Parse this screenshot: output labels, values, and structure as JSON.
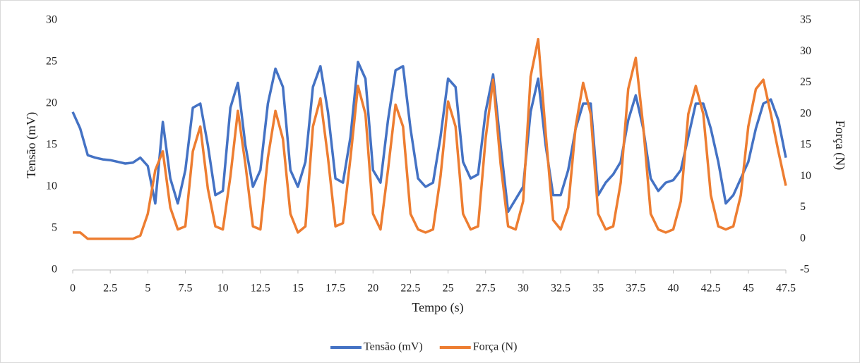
{
  "chart_data": {
    "type": "line",
    "xlabel": "Tempo (s)",
    "ylabel": "Tensão (mV)",
    "y2label": "Força (N)",
    "x": [
      0,
      0.5,
      1,
      1.5,
      2,
      2.5,
      3,
      3.5,
      4,
      4.5,
      5,
      5.5,
      6,
      6.5,
      7,
      7.5,
      8,
      8.5,
      9,
      9.5,
      10,
      10.5,
      11,
      11.5,
      12,
      12.5,
      13,
      13.5,
      14,
      14.5,
      15,
      15.5,
      16,
      16.5,
      17,
      17.5,
      18,
      18.5,
      19,
      19.5,
      20,
      20.5,
      21,
      21.5,
      22,
      22.5,
      23,
      23.5,
      24,
      24.5,
      25,
      25.5,
      26,
      26.5,
      27,
      27.5,
      28,
      28.5,
      29,
      29.5,
      30,
      30.5,
      31,
      31.5,
      32,
      32.5,
      33,
      33.5,
      34,
      34.5,
      35,
      35.5,
      36,
      36.5,
      37,
      37.5,
      38,
      38.5,
      39,
      39.5,
      40,
      40.5,
      41,
      41.5,
      42,
      42.5,
      43,
      43.5,
      44,
      44.5,
      45,
      45.5,
      46,
      46.5,
      47,
      47.5
    ],
    "series": [
      {
        "name": "Tensão (mV)",
        "color": "#4472c4",
        "axis": "y",
        "values": [
          19,
          17,
          13.8,
          13.5,
          13.3,
          13.2,
          13,
          12.8,
          12.9,
          13.5,
          12.5,
          8,
          17.8,
          11,
          8,
          12,
          19.5,
          20,
          15,
          9,
          9.5,
          19.5,
          22.5,
          15,
          10,
          12,
          20,
          24.2,
          22,
          12,
          10,
          13,
          22,
          24.5,
          19,
          11,
          10.5,
          16,
          25,
          23,
          12,
          10.5,
          18,
          24,
          24.5,
          17,
          11,
          10,
          10.5,
          16,
          23,
          22,
          13,
          11,
          11.5,
          19,
          23.5,
          15,
          7,
          8.5,
          10,
          19,
          23,
          15,
          9,
          9,
          12,
          17,
          20,
          20,
          9,
          10.5,
          11.5,
          13,
          18,
          21,
          17,
          11,
          9.5,
          10.5,
          10.8,
          12,
          16,
          20,
          20,
          17,
          13,
          8,
          9,
          11,
          13,
          17,
          20,
          20.5,
          18,
          13.5
        ]
      },
      {
        "name": "Força (N)",
        "color": "#ed7d31",
        "axis": "y2",
        "values": [
          1,
          1,
          0,
          0,
          0,
          0,
          0,
          0,
          0,
          0.5,
          4,
          11,
          14,
          5,
          1.5,
          2,
          14,
          18,
          8,
          2,
          1.5,
          10,
          20.5,
          12,
          2,
          1.5,
          13,
          20.5,
          16,
          4,
          1,
          2,
          18,
          22.5,
          13,
          2,
          2.5,
          13,
          24.5,
          20,
          4,
          1.5,
          11,
          21.5,
          18,
          4,
          1.5,
          1,
          1.5,
          10,
          22,
          18,
          4,
          1.5,
          2,
          16,
          25.5,
          12,
          2,
          1.5,
          6,
          26,
          32,
          17,
          3,
          1.5,
          5,
          18,
          25,
          20,
          4,
          1.5,
          2,
          9,
          24,
          29,
          18,
          4,
          1.5,
          1,
          1.5,
          6,
          20,
          24.5,
          20,
          7,
          2,
          1.5,
          2,
          7,
          18,
          24,
          25.5,
          20,
          14,
          8.5
        ]
      }
    ],
    "xlim": [
      0,
      47.5
    ],
    "xticks": [
      0,
      2.5,
      5,
      7.5,
      10,
      12.5,
      15,
      17.5,
      20,
      22.5,
      25,
      27.5,
      30,
      32.5,
      35,
      37.5,
      40,
      42.5,
      45,
      47.5
    ],
    "ylim": [
      0,
      30
    ],
    "yticks": [
      0,
      5,
      10,
      15,
      20,
      25,
      30
    ],
    "y2lim": [
      -5,
      35
    ],
    "y2ticks": [
      -5,
      0,
      5,
      10,
      15,
      20,
      25,
      30,
      35
    ],
    "grid": false,
    "legend": "bottom"
  }
}
